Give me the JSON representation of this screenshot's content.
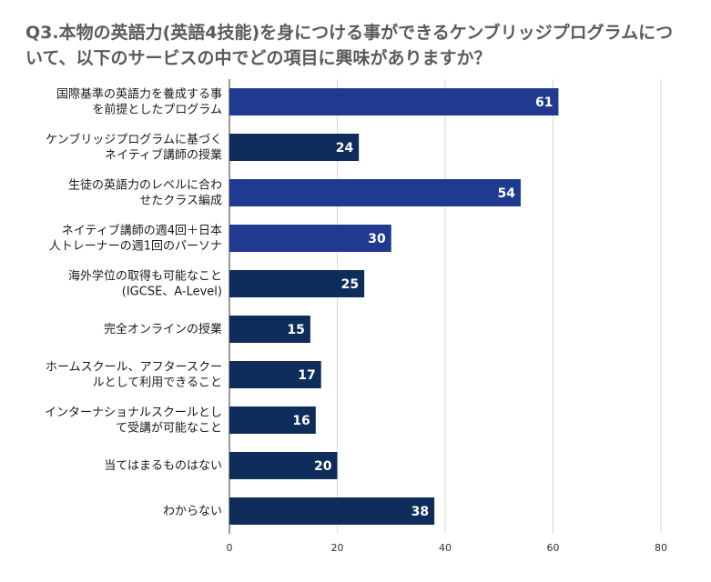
{
  "chart_data": {
    "type": "bar",
    "orientation": "horizontal",
    "title": "Q3.本物の英語力(英語4技能)を身につける事ができるケンブリッジプログラムについて、以下のサービスの中でどの項目に興味がありますか？",
    "categories": [
      [
        "国際基準の英語力を養成する事",
        "を前提としたプログラム"
      ],
      [
        "ケンブリッジプログラムに基づく",
        "ネイティブ講師の授業"
      ],
      [
        "生徒の英語力のレベルに合わ",
        "せたクラス編成"
      ],
      [
        "ネイティブ講師の週4回＋日本",
        "人トレーナーの週1回のパーソナ"
      ],
      [
        "海外学位の取得も可能なこと",
        "(IGCSE、A-Level)"
      ],
      [
        "完全オンラインの授業"
      ],
      [
        "ホームスクール、アフタースクー",
        "ルとして利用できること"
      ],
      [
        "インターナショナルスクールとし",
        "て受講が可能なこと"
      ],
      [
        "当てはまるものはない"
      ],
      [
        "わからない"
      ]
    ],
    "values": [
      61,
      24,
      54,
      30,
      25,
      15,
      17,
      16,
      20,
      38
    ],
    "bar_colors": [
      "#1f3a8f",
      "#0f2d5b",
      "#1f3a8f",
      "#1f3a8f",
      "#0f2d5b",
      "#0f2d5b",
      "#0f2d5b",
      "#0f2d5b",
      "#0f2d5b",
      "#0f2d5b"
    ],
    "xlim": [
      0,
      80
    ],
    "xticks": [
      0,
      20,
      40,
      60,
      80
    ],
    "grid": true,
    "xlabel": "",
    "ylabel": ""
  }
}
